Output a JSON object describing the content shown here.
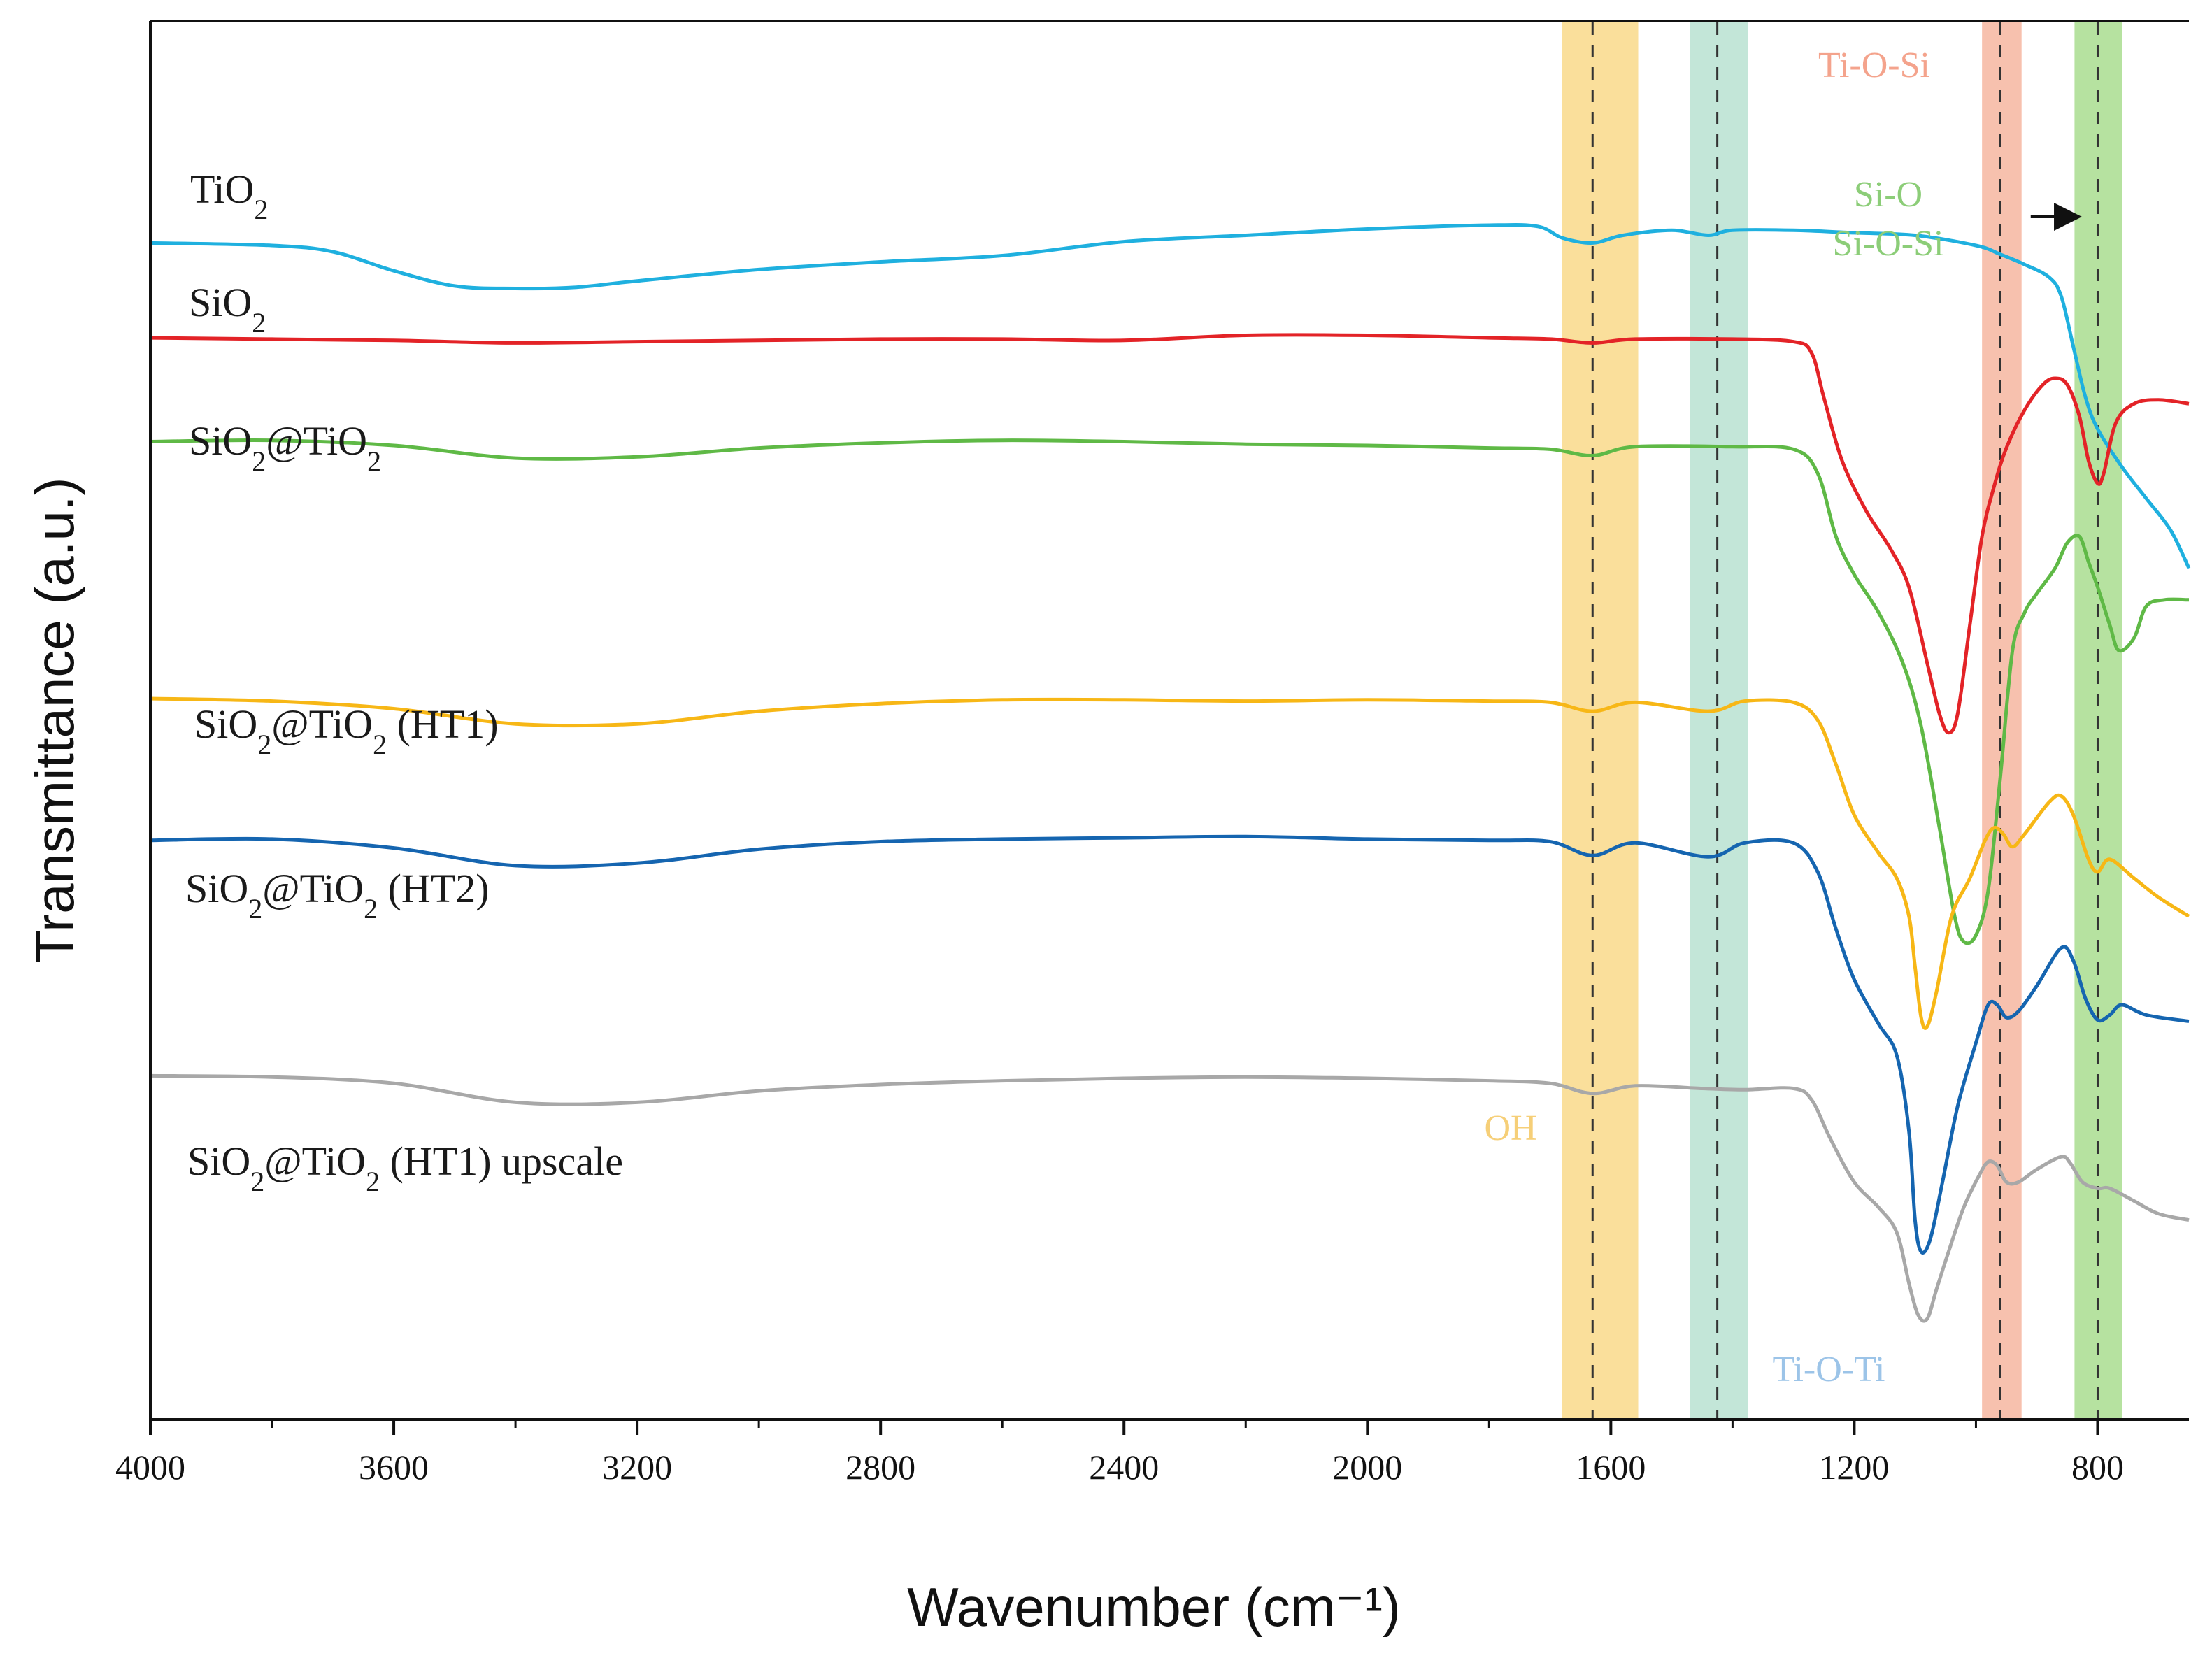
{
  "chart_data": {
    "type": "line",
    "title": "",
    "xlabel": "Wavenumber (cm⁻¹)",
    "ylabel": "Transmittance (a.u.)",
    "xlim": [
      4000,
      650
    ],
    "x_reversed": true,
    "ylim": [
      0,
      100
    ],
    "x_ticks": [
      4000,
      3600,
      3200,
      2800,
      2400,
      2000,
      1600,
      1200,
      800
    ],
    "x_tick_labels": [
      "4000",
      "3600",
      "3200",
      "2800",
      "2400",
      "2000",
      "1600",
      "1200",
      "800"
    ],
    "x_minor_ticks": [
      3800,
      3400,
      3000,
      2600,
      2200,
      1800,
      1400,
      1000
    ],
    "y_ticks_shown": false,
    "grid": false,
    "series": [
      {
        "name": "TiO2",
        "label_main": "TiO",
        "label_parts": [
          {
            "t": "TiO"
          },
          {
            "t": "2",
            "sub": true
          }
        ],
        "label_text": "TiO2",
        "color": "#1fb0df",
        "points": [
          [
            4000,
            90.2
          ],
          [
            3800,
            90.0
          ],
          [
            3700,
            89.5
          ],
          [
            3600,
            88.0
          ],
          [
            3500,
            86.8
          ],
          [
            3400,
            86.6
          ],
          [
            3300,
            86.7
          ],
          [
            3200,
            87.2
          ],
          [
            3000,
            88.1
          ],
          [
            2800,
            88.7
          ],
          [
            2600,
            89.2
          ],
          [
            2400,
            90.3
          ],
          [
            2200,
            90.8
          ],
          [
            2000,
            91.3
          ],
          [
            1800,
            91.6
          ],
          [
            1720,
            91.5
          ],
          [
            1680,
            90.6
          ],
          [
            1630,
            90.2
          ],
          [
            1580,
            90.8
          ],
          [
            1500,
            91.2
          ],
          [
            1440,
            90.8
          ],
          [
            1400,
            91.2
          ],
          [
            1300,
            91.2
          ],
          [
            1200,
            91.0
          ],
          [
            1100,
            90.8
          ],
          [
            1000,
            90.0
          ],
          [
            960,
            89.3
          ],
          [
            920,
            88.5
          ],
          [
            880,
            87.5
          ],
          [
            860,
            86.0
          ],
          [
            840,
            82.0
          ],
          [
            820,
            78.0
          ],
          [
            800,
            75.5
          ],
          [
            760,
            72.5
          ],
          [
            720,
            70.0
          ],
          [
            680,
            67.5
          ],
          [
            650,
            64.5
          ]
        ]
      },
      {
        "name": "SiO2",
        "label_text": "SiO2",
        "label_parts": [
          {
            "t": "SiO"
          },
          {
            "t": "2",
            "sub": true
          }
        ],
        "color": "#e32327",
        "points": [
          [
            4000,
            82.7
          ],
          [
            3800,
            82.6
          ],
          [
            3600,
            82.5
          ],
          [
            3400,
            82.3
          ],
          [
            3200,
            82.4
          ],
          [
            3000,
            82.5
          ],
          [
            2800,
            82.6
          ],
          [
            2600,
            82.6
          ],
          [
            2400,
            82.5
          ],
          [
            2200,
            82.9
          ],
          [
            2000,
            82.9
          ],
          [
            1800,
            82.7
          ],
          [
            1700,
            82.6
          ],
          [
            1630,
            82.3
          ],
          [
            1560,
            82.6
          ],
          [
            1400,
            82.6
          ],
          [
            1300,
            82.4
          ],
          [
            1270,
            81.5
          ],
          [
            1250,
            78.0
          ],
          [
            1220,
            73.0
          ],
          [
            1180,
            69.0
          ],
          [
            1140,
            66.0
          ],
          [
            1110,
            63.0
          ],
          [
            1080,
            57.0
          ],
          [
            1060,
            53.0
          ],
          [
            1045,
            51.5
          ],
          [
            1030,
            53.0
          ],
          [
            1010,
            60.0
          ],
          [
            990,
            67.0
          ],
          [
            970,
            71.0
          ],
          [
            950,
            74.0
          ],
          [
            920,
            77.0
          ],
          [
            890,
            79.0
          ],
          [
            870,
            79.5
          ],
          [
            850,
            79.0
          ],
          [
            830,
            76.5
          ],
          [
            815,
            73.0
          ],
          [
            800,
            71.2
          ],
          [
            790,
            72.0
          ],
          [
            770,
            76.0
          ],
          [
            740,
            77.5
          ],
          [
            700,
            77.8
          ],
          [
            650,
            77.5
          ]
        ]
      },
      {
        "name": "SiO2@TiO2",
        "label_text": "SiO2@TiO2",
        "label_parts": [
          {
            "t": "SiO"
          },
          {
            "t": "2",
            "sub": true
          },
          {
            "t": "@TiO"
          },
          {
            "t": "2",
            "sub": true
          }
        ],
        "color": "#5fb946",
        "points": [
          [
            4000,
            74.5
          ],
          [
            3800,
            74.6
          ],
          [
            3600,
            74.2
          ],
          [
            3400,
            73.2
          ],
          [
            3200,
            73.3
          ],
          [
            3000,
            74.0
          ],
          [
            2800,
            74.4
          ],
          [
            2600,
            74.6
          ],
          [
            2400,
            74.5
          ],
          [
            2200,
            74.3
          ],
          [
            2000,
            74.2
          ],
          [
            1800,
            74.0
          ],
          [
            1700,
            73.9
          ],
          [
            1630,
            73.4
          ],
          [
            1560,
            74.1
          ],
          [
            1400,
            74.1
          ],
          [
            1300,
            73.9
          ],
          [
            1260,
            72.0
          ],
          [
            1230,
            67.0
          ],
          [
            1200,
            64.0
          ],
          [
            1160,
            61.0
          ],
          [
            1120,
            57.0
          ],
          [
            1090,
            52.0
          ],
          [
            1060,
            44.0
          ],
          [
            1035,
            37.0
          ],
          [
            1020,
            35.0
          ],
          [
            1000,
            35.5
          ],
          [
            980,
            39.0
          ],
          [
            960,
            48.0
          ],
          [
            940,
            58.0
          ],
          [
            920,
            61.0
          ],
          [
            900,
            62.5
          ],
          [
            870,
            64.5
          ],
          [
            850,
            66.5
          ],
          [
            830,
            67.0
          ],
          [
            815,
            65.0
          ],
          [
            800,
            63.0
          ],
          [
            780,
            60.0
          ],
          [
            765,
            58.0
          ],
          [
            740,
            59.0
          ],
          [
            720,
            61.5
          ],
          [
            690,
            62.0
          ],
          [
            650,
            62.0
          ]
        ]
      },
      {
        "name": "SiO2@TiO2 (HT1)",
        "label_text": "SiO2@TiO2 (HT1)",
        "label_parts": [
          {
            "t": "SiO"
          },
          {
            "t": "2",
            "sub": true
          },
          {
            "t": "@TiO"
          },
          {
            "t": "2",
            "sub": true
          },
          {
            "t": " (HT1)"
          }
        ],
        "color": "#f7b716",
        "points": [
          [
            4000,
            54.2
          ],
          [
            3800,
            54.0
          ],
          [
            3600,
            53.4
          ],
          [
            3400,
            52.2
          ],
          [
            3200,
            52.2
          ],
          [
            3000,
            53.2
          ],
          [
            2800,
            53.8
          ],
          [
            2600,
            54.1
          ],
          [
            2400,
            54.1
          ],
          [
            2200,
            54.0
          ],
          [
            2000,
            54.1
          ],
          [
            1800,
            54.0
          ],
          [
            1700,
            53.9
          ],
          [
            1630,
            53.2
          ],
          [
            1560,
            53.9
          ],
          [
            1440,
            53.2
          ],
          [
            1380,
            54.0
          ],
          [
            1300,
            53.9
          ],
          [
            1260,
            52.5
          ],
          [
            1230,
            49.0
          ],
          [
            1200,
            45.0
          ],
          [
            1160,
            42.0
          ],
          [
            1130,
            40.0
          ],
          [
            1110,
            37.0
          ],
          [
            1100,
            33.0
          ],
          [
            1090,
            29.0
          ],
          [
            1080,
            28.3
          ],
          [
            1065,
            31.0
          ],
          [
            1040,
            37.0
          ],
          [
            1010,
            40.0
          ],
          [
            985,
            43.0
          ],
          [
            970,
            44.0
          ],
          [
            955,
            43.5
          ],
          [
            940,
            42.5
          ],
          [
            920,
            43.5
          ],
          [
            880,
            46.0
          ],
          [
            860,
            46.5
          ],
          [
            840,
            45.0
          ],
          [
            815,
            41.5
          ],
          [
            800,
            40.5
          ],
          [
            780,
            41.5
          ],
          [
            740,
            40.0
          ],
          [
            700,
            38.5
          ],
          [
            650,
            37.0
          ]
        ]
      },
      {
        "name": "SiO2@TiO2 (HT2)",
        "label_text": "SiO2@TiO2 (HT2)",
        "label_parts": [
          {
            "t": "SiO"
          },
          {
            "t": "2",
            "sub": true
          },
          {
            "t": "@TiO"
          },
          {
            "t": "2",
            "sub": true
          },
          {
            "t": " (HT2)"
          }
        ],
        "color": "#1565b0",
        "points": [
          [
            4000,
            43.0
          ],
          [
            3800,
            43.1
          ],
          [
            3600,
            42.4
          ],
          [
            3400,
            41.0
          ],
          [
            3200,
            41.2
          ],
          [
            3000,
            42.3
          ],
          [
            2800,
            42.9
          ],
          [
            2600,
            43.1
          ],
          [
            2400,
            43.2
          ],
          [
            2200,
            43.3
          ],
          [
            2000,
            43.1
          ],
          [
            1800,
            43.0
          ],
          [
            1700,
            42.9
          ],
          [
            1630,
            41.8
          ],
          [
            1560,
            42.8
          ],
          [
            1440,
            41.7
          ],
          [
            1380,
            42.8
          ],
          [
            1300,
            42.8
          ],
          [
            1260,
            40.5
          ],
          [
            1230,
            36.0
          ],
          [
            1200,
            32.0
          ],
          [
            1160,
            28.5
          ],
          [
            1130,
            26.0
          ],
          [
            1110,
            20.0
          ],
          [
            1100,
            13.0
          ],
          [
            1090,
            10.5
          ],
          [
            1075,
            11.5
          ],
          [
            1055,
            16.0
          ],
          [
            1030,
            22.0
          ],
          [
            1000,
            27.0
          ],
          [
            980,
            30.0
          ],
          [
            965,
            30.0
          ],
          [
            950,
            29.0
          ],
          [
            930,
            29.5
          ],
          [
            900,
            31.5
          ],
          [
            860,
            34.5
          ],
          [
            840,
            33.5
          ],
          [
            820,
            30.5
          ],
          [
            800,
            28.8
          ],
          [
            780,
            29.2
          ],
          [
            760,
            30.0
          ],
          [
            720,
            29.2
          ],
          [
            650,
            28.7
          ]
        ]
      },
      {
        "name": "SiO2@TiO2 (HT1) upscale",
        "label_text": "SiO2@TiO2 (HT1) upscale",
        "label_parts": [
          {
            "t": "SiO"
          },
          {
            "t": "2",
            "sub": true
          },
          {
            "t": "@TiO"
          },
          {
            "t": "2",
            "sub": true
          },
          {
            "t": " (HT1) upscale"
          }
        ],
        "color": "#a8a8a8",
        "points": [
          [
            4000,
            24.4
          ],
          [
            3800,
            24.3
          ],
          [
            3600,
            23.8
          ],
          [
            3400,
            22.3
          ],
          [
            3200,
            22.3
          ],
          [
            3000,
            23.2
          ],
          [
            2800,
            23.7
          ],
          [
            2600,
            24.0
          ],
          [
            2400,
            24.2
          ],
          [
            2200,
            24.3
          ],
          [
            2000,
            24.2
          ],
          [
            1800,
            24.0
          ],
          [
            1700,
            23.8
          ],
          [
            1630,
            23.0
          ],
          [
            1560,
            23.6
          ],
          [
            1450,
            23.4
          ],
          [
            1380,
            23.3
          ],
          [
            1300,
            23.4
          ],
          [
            1270,
            22.5
          ],
          [
            1240,
            19.5
          ],
          [
            1200,
            16.0
          ],
          [
            1160,
            14.0
          ],
          [
            1130,
            12.0
          ],
          [
            1110,
            8.0
          ],
          [
            1095,
            5.5
          ],
          [
            1080,
            5.2
          ],
          [
            1065,
            7.5
          ],
          [
            1045,
            10.5
          ],
          [
            1020,
            14.0
          ],
          [
            995,
            16.5
          ],
          [
            980,
            17.6
          ],
          [
            965,
            17.3
          ],
          [
            950,
            16.0
          ],
          [
            930,
            16.0
          ],
          [
            900,
            17.0
          ],
          [
            860,
            18.0
          ],
          [
            845,
            17.5
          ],
          [
            825,
            16.0
          ],
          [
            800,
            15.5
          ],
          [
            780,
            15.5
          ],
          [
            740,
            14.5
          ],
          [
            700,
            13.5
          ],
          [
            650,
            13.0
          ]
        ]
      }
    ],
    "bands": [
      {
        "name": "OH",
        "center": 1630,
        "from": 1680,
        "to": 1555,
        "color": "#f9d98a"
      },
      {
        "name": "Ti-O-Ti",
        "center": 1425,
        "from": 1470,
        "to": 1375,
        "color": "#b9e2d1"
      },
      {
        "name": "Ti-O-Si",
        "center": 960,
        "from": 990,
        "to": 925,
        "color": "#f6b6a0"
      },
      {
        "name": "Si-O / Si-O-Si",
        "center": 800,
        "from": 838,
        "to": 760,
        "color": "#a9dd8f"
      }
    ],
    "annotations": [
      {
        "text": "OH",
        "color": "#f6cf78"
      },
      {
        "text": "Ti-O-Ti",
        "color": "#9cc4e8"
      },
      {
        "text": "Ti-O-Si",
        "color": "#f4a38c"
      },
      {
        "text": "Si-O",
        "color": "#8ccd78"
      },
      {
        "text": "Si-O-Si",
        "color": "#8ccd78"
      }
    ],
    "arrow": {
      "from_x": 910,
      "to_x": 835,
      "y": 82.0,
      "color": "#111111"
    }
  }
}
